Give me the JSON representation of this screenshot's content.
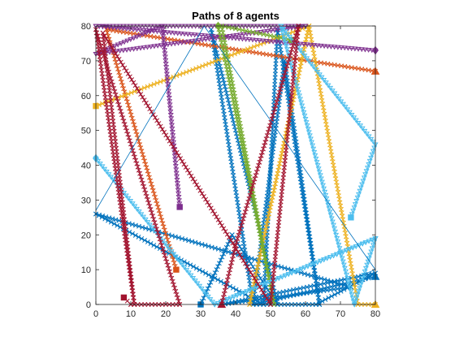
{
  "chart_data": {
    "type": "line",
    "title": "Paths of 8 agents",
    "xlabel": "",
    "ylabel": "",
    "xlim": [
      0,
      80
    ],
    "ylim": [
      0,
      80
    ],
    "x_ticks": [
      0,
      10,
      20,
      30,
      40,
      50,
      60,
      70,
      80
    ],
    "y_ticks": [
      0,
      10,
      20,
      30,
      40,
      50,
      60,
      70,
      80
    ],
    "grid": false,
    "legend": "none",
    "series": [
      {
        "color": "#0072BD",
        "marker": "cross",
        "start_marker": "triangle",
        "end_marker": "square",
        "x": [
          80,
          45,
          63,
          80,
          36,
          73,
          0,
          48,
          52,
          64,
          54,
          45,
          33,
          52,
          39,
          30
        ],
        "y": [
          8,
          0,
          0,
          9,
          0,
          5,
          26,
          0,
          79,
          0,
          70,
          0,
          79,
          0,
          20,
          0
        ]
      },
      {
        "color": "#D95319",
        "marker": "cross",
        "start_marker": "triangle",
        "end_marker": "square",
        "x": [
          80,
          3,
          23
        ],
        "y": [
          67,
          79,
          10
        ]
      },
      {
        "color": "#EDB120",
        "marker": "cross",
        "start_marker": "triangle",
        "end_marker": "square",
        "x": [
          80,
          75,
          61,
          44,
          61,
          0
        ],
        "y": [
          0,
          0,
          80,
          0,
          80,
          57
        ]
      },
      {
        "color": "#7E2F8E",
        "marker": "triangle-down",
        "start_marker": "diamond",
        "end_marker": "square",
        "x": [
          80,
          0,
          60,
          0,
          19,
          24
        ],
        "y": [
          73,
          80,
          80,
          72,
          80,
          28
        ]
      },
      {
        "color": "#77AC30",
        "marker": "cross",
        "start_marker": "diamond",
        "end_marker": "square",
        "x": [
          35,
          51,
          36,
          56
        ],
        "y": [
          80,
          0,
          80,
          76
        ]
      },
      {
        "color": "#4DBEEE",
        "marker": "triangle-down",
        "start_marker": "diamond",
        "end_marker": "square",
        "x": [
          0,
          34,
          80,
          34,
          80,
          74,
          53,
          80,
          73
        ],
        "y": [
          42,
          0,
          19,
          0,
          19,
          0,
          80,
          46,
          25
        ]
      },
      {
        "color": "#A2142F",
        "marker": "cross",
        "start_marker": "triangle",
        "end_marker": "square",
        "x": [
          36,
          40,
          58,
          56,
          50,
          2,
          11,
          0,
          24,
          10,
          8
        ],
        "y": [
          0,
          17,
          80,
          60,
          0,
          78,
          0,
          79,
          0,
          0,
          2
        ]
      },
      {
        "color": "#0072BD",
        "marker": "none",
        "start_marker": "none",
        "end_marker": "none",
        "x": [
          0,
          31,
          80,
          75
        ],
        "y": [
          27,
          80,
          10,
          8
        ]
      }
    ]
  }
}
